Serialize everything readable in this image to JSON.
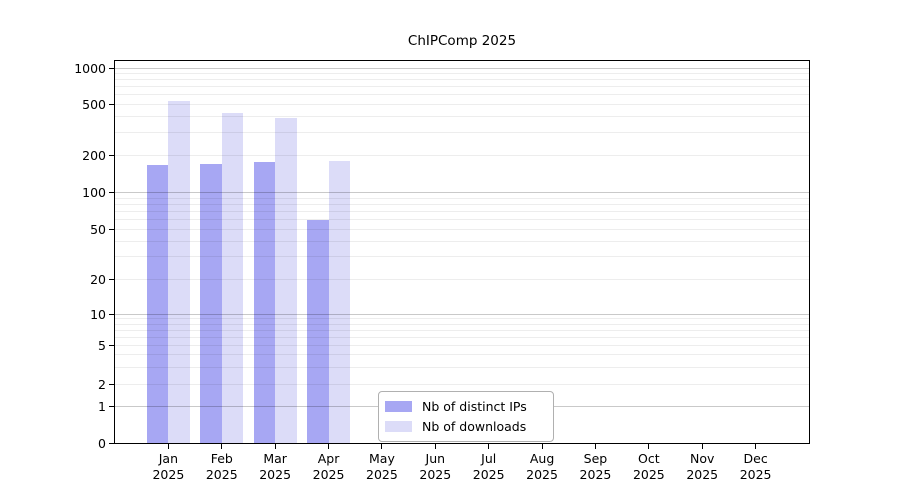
{
  "title": "ChIPComp 2025",
  "chart_data": {
    "type": "bar",
    "title": "ChIPComp 2025",
    "x_categories": [
      "Jan",
      "Feb",
      "Mar",
      "Apr",
      "May",
      "Jun",
      "Jul",
      "Aug",
      "Sep",
      "Oct",
      "Nov",
      "Dec"
    ],
    "x_year": "2025",
    "series": [
      {
        "name": "Nb of distinct IPs",
        "color": "#a7a7f3",
        "values": [
          165,
          170,
          175,
          59,
          null,
          null,
          null,
          null,
          null,
          null,
          null,
          null
        ]
      },
      {
        "name": "Nb of downloads",
        "color": "#dcdcf8",
        "values": [
          535,
          425,
          390,
          178,
          null,
          null,
          null,
          null,
          null,
          null,
          null,
          null
        ]
      }
    ],
    "yticks": [
      0,
      1,
      2,
      5,
      10,
      20,
      50,
      100,
      200,
      500,
      1000
    ],
    "yscale": "symlog",
    "ylim": [
      0,
      1150
    ],
    "grid": "horizontal major+minor",
    "legend_position": "lower center"
  },
  "colors": {
    "bar_distinct_ips": "#a7a7f3",
    "bar_downloads": "#dcdcf8",
    "axis": "#000000",
    "grid_major": "rgba(0,0,0,0.21)",
    "grid_minor": "rgba(0,0,0,0.07)",
    "legend_border": "#b0b0b0",
    "background": "#ffffff"
  }
}
